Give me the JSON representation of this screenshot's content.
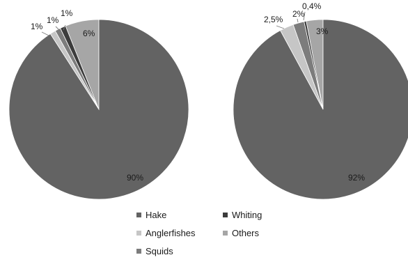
{
  "chart_data": [
    {
      "type": "pie",
      "categories": [
        "Hake",
        "Whiting",
        "Anglerfishes",
        "Others",
        "Squids"
      ],
      "values": [
        90,
        1,
        1,
        6,
        1
      ],
      "labels": [
        "90%",
        "1%",
        "1%",
        "6%",
        "1%"
      ],
      "colors": [
        "#636363",
        "#3c3c3c",
        "#c6c6c6",
        "#a6a6a6",
        "#7c7c7c"
      ]
    },
    {
      "type": "pie",
      "categories": [
        "Hake",
        "Whiting",
        "Anglerfishes",
        "Others",
        "Squids"
      ],
      "values": [
        92,
        0.4,
        2.5,
        3,
        2
      ],
      "labels": [
        "92%",
        "0,4%",
        "2,5%",
        "3%",
        "2%"
      ],
      "colors": [
        "#636363",
        "#3c3c3c",
        "#c6c6c6",
        "#a6a6a6",
        "#7c7c7c"
      ]
    }
  ],
  "legend": {
    "entries": [
      {
        "label": "Hake",
        "color": "#636363"
      },
      {
        "label": "Whiting",
        "color": "#3c3c3c"
      },
      {
        "label": "Anglerfishes",
        "color": "#c6c6c6"
      },
      {
        "label": "Others",
        "color": "#a6a6a6"
      },
      {
        "label": "Squids",
        "color": "#7c7c7c"
      }
    ]
  }
}
